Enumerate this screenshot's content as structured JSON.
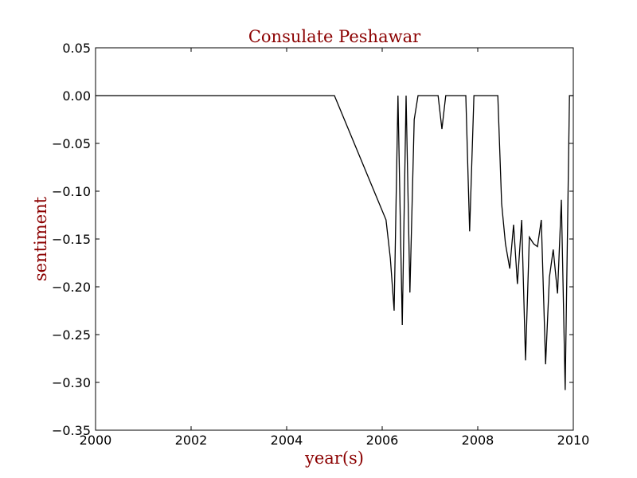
{
  "chart_data": {
    "type": "line",
    "title": "Consulate Peshawar",
    "xlabel": "year(s)",
    "ylabel": "sentiment",
    "xlim": [
      2000,
      2010
    ],
    "ylim": [
      -0.35,
      0.05
    ],
    "grid": false,
    "x_ticks": [
      2000,
      2002,
      2004,
      2006,
      2008,
      2010
    ],
    "x_tick_labels": [
      "2000",
      "2002",
      "2004",
      "2006",
      "2008",
      "2010"
    ],
    "y_ticks": [
      0.05,
      0.0,
      -0.05,
      -0.1,
      -0.15,
      -0.2,
      -0.25,
      -0.3,
      -0.35
    ],
    "y_tick_labels": [
      "0.05",
      "0.00",
      "−0.05",
      "−0.10",
      "−0.15",
      "−0.20",
      "−0.25",
      "−0.30",
      "−0.35"
    ],
    "colors": {
      "title": "#8b0000",
      "line": "#000000",
      "axes": "#000000"
    },
    "series": [
      {
        "x": [
          2000.0,
          2005.0,
          2006.08,
          2006.17,
          2006.25,
          2006.33,
          2006.42,
          2006.5,
          2006.58,
          2006.67,
          2006.75,
          2006.83,
          2006.92,
          2007.0,
          2007.08,
          2007.17,
          2007.25,
          2007.33,
          2007.42,
          2007.5,
          2007.58,
          2007.67,
          2007.75,
          2007.83,
          2007.92,
          2008.0,
          2008.08,
          2008.17,
          2008.25,
          2008.33,
          2008.42,
          2008.5,
          2008.58,
          2008.67,
          2008.75,
          2008.83,
          2008.92,
          2009.0,
          2009.08,
          2009.17,
          2009.25,
          2009.33,
          2009.42,
          2009.5,
          2009.58,
          2009.67,
          2009.75,
          2009.83,
          2009.92,
          2010.0
        ],
        "y": [
          0.0,
          0.0,
          -0.13,
          -0.17,
          -0.225,
          0.0,
          -0.24,
          0.0,
          -0.206,
          -0.025,
          0.0,
          0.0,
          0.0,
          0.0,
          0.0,
          0.0,
          -0.035,
          0.0,
          0.0,
          0.0,
          0.0,
          0.0,
          0.0,
          -0.142,
          0.0,
          0.0,
          0.0,
          0.0,
          0.0,
          0.0,
          0.0,
          -0.113,
          -0.155,
          -0.181,
          -0.135,
          -0.197,
          -0.13,
          -0.277,
          -0.148,
          -0.155,
          -0.158,
          -0.13,
          -0.281,
          -0.19,
          -0.161,
          -0.207,
          -0.109,
          -0.308,
          0.0,
          0.0
        ]
      }
    ]
  }
}
